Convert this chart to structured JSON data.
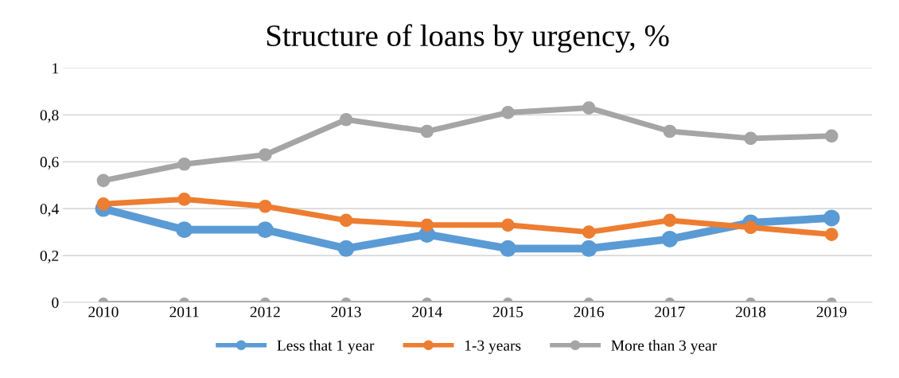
{
  "chart_data": {
    "type": "line",
    "title": "Structure of loans by urgency, %",
    "categories": [
      "2010",
      "2011",
      "2012",
      "2013",
      "2014",
      "2015",
      "2016",
      "2017",
      "2018",
      "2019"
    ],
    "series": [
      {
        "name": "Less that 1 year",
        "color": "#5b9bd5",
        "values": [
          0.4,
          0.31,
          0.31,
          0.23,
          0.29,
          0.23,
          0.23,
          0.27,
          0.34,
          0.36
        ]
      },
      {
        "name": "1-3 years",
        "color": "#ed7d31",
        "values": [
          0.42,
          0.44,
          0.41,
          0.35,
          0.33,
          0.33,
          0.3,
          0.35,
          0.32,
          0.29
        ]
      },
      {
        "name": "More than 3 year",
        "color": "#a5a5a5",
        "values": [
          0.52,
          0.59,
          0.63,
          0.78,
          0.73,
          0.81,
          0.83,
          0.73,
          0.7,
          0.71
        ]
      },
      {
        "color": "#a5a5a5",
        "values": [
          0,
          0,
          0,
          0,
          0,
          0,
          0,
          0,
          0,
          0
        ]
      }
    ],
    "ylim": [
      0,
      1
    ],
    "yticks": [
      0,
      {
        "value": 0.2,
        "label": "0,2"
      },
      {
        "value": 0.4,
        "label": "0,4"
      },
      {
        "value": 0.6,
        "label": "0,6"
      },
      {
        "value": 0.8,
        "label": "0,8"
      },
      1
    ],
    "grid": "y",
    "legend": "bottom",
    "marker": "circle",
    "line_style": "solid"
  }
}
